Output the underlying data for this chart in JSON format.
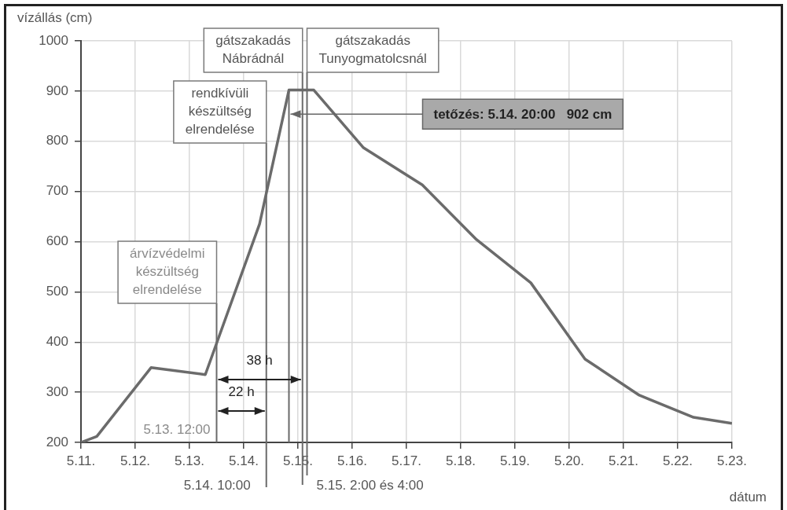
{
  "chart_data": {
    "type": "line",
    "xlabel": "dátum",
    "ylabel": "vízállás (cm)",
    "x": [
      "--05-11",
      "--05-11T07:00",
      "--05-12T07:00",
      "--05-13T07:00",
      "--05-14T07:00",
      "--05-14T20:00",
      "--05-15T07:00",
      "--05-16T05:00",
      "--05-17T07:00",
      "--05-18T07:00",
      "--05-19T07:00",
      "--05-20T07:00",
      "--05-21T07:00",
      "--05-22T07:00",
      "--05-23"
    ],
    "series": [
      {
        "color": "#6b6b6b",
        "values": [
          200,
          212,
          349,
          335,
          635,
          902,
          902,
          787,
          713,
          604,
          518,
          366,
          294,
          250,
          238
        ]
      }
    ],
    "xlim": [
      "--05-11",
      "--05-23"
    ],
    "xticks": [
      {
        "value": "--05-11",
        "label": "5.11."
      },
      {
        "value": "--05-12",
        "label": "5.12."
      },
      {
        "value": "--05-13",
        "label": "5.13."
      },
      {
        "value": "--05-14",
        "label": "5.14."
      },
      {
        "value": "--05-15",
        "label": "5.15."
      },
      {
        "value": "--05-16",
        "label": "5.16."
      },
      {
        "value": "--05-17",
        "label": "5.17."
      },
      {
        "value": "--05-18",
        "label": "5.18."
      },
      {
        "value": "--05-19",
        "label": "5.19."
      },
      {
        "value": "--05-20",
        "label": "5.20."
      },
      {
        "value": "--05-21",
        "label": "5.21."
      },
      {
        "value": "--05-22",
        "label": "5.22."
      },
      {
        "value": "--05-23",
        "label": "5.23."
      }
    ],
    "ylim": [
      200,
      1000
    ],
    "yticks": [
      200,
      300,
      400,
      500,
      600,
      700,
      800,
      900,
      1000
    ],
    "grid": true,
    "legend": false,
    "marker": "none",
    "line_style": "solid",
    "ref_lines": [
      {
        "axis": "x",
        "value": "--05-13T12:00",
        "label": "árvízvédelmi\nkészültség\nelrendelése"
      },
      {
        "axis": "x",
        "value": "--05-14T10:00",
        "label": "rendkívüli\nkészültség\nelrendelése"
      },
      {
        "axis": "x",
        "value": "--05-14T20:00",
        "label": null
      },
      {
        "axis": "x",
        "value": "--05-15T02:00",
        "label": "gátszakadás\nNábrádnál"
      },
      {
        "axis": "x",
        "value": "--05-15T04:00",
        "label": "gátszakadás\nTunyogmatolcsnál"
      }
    ],
    "annotations": [
      {
        "text": "5.13. 12:00",
        "x": "--05-13T12:00",
        "y": 224
      },
      {
        "text": "5.14. 10:00",
        "x": "--05-14T10:00"
      },
      "5.15. 2:00 és 4:00",
      "38 h",
      "22 h",
      {
        "text": "tetőzés: 5.14. 20:00   902 cm",
        "x": "--05-14T20:00",
        "y": 854
      }
    ]
  }
}
